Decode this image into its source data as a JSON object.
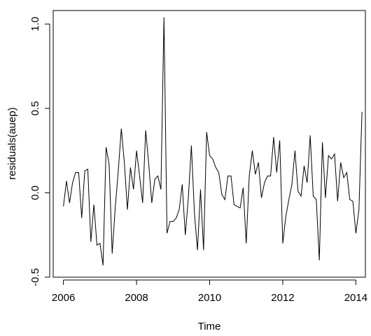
{
  "chart_data": {
    "type": "line",
    "title": "",
    "xlabel": "Time",
    "ylabel": "residuals(auep)",
    "xlim": [
      2005.72,
      2014.26
    ],
    "ylim": [
      -0.5,
      1.08
    ],
    "x_ticks": [
      2006,
      2008,
      2010,
      2012,
      2014
    ],
    "x_tick_labels": [
      "2006",
      "2008",
      "2010",
      "2012",
      "2014"
    ],
    "y_ticks": [
      -0.5,
      0.0,
      0.5,
      1.0
    ],
    "y_tick_labels": [
      "-0.5",
      "0.0",
      "0.5",
      "1.0"
    ],
    "line_color": "#000000",
    "grid": false,
    "series": [
      {
        "start": 2006.0,
        "frequency": 12,
        "values": [
          -0.08,
          0.07,
          -0.06,
          0.06,
          0.12,
          0.12,
          -0.15,
          0.13,
          0.14,
          -0.29,
          -0.07,
          -0.31,
          -0.3,
          -0.43,
          0.27,
          0.17,
          -0.36,
          -0.09,
          0.13,
          0.38,
          0.18,
          -0.1,
          0.15,
          0.02,
          0.25,
          0.1,
          -0.06,
          0.37,
          0.17,
          -0.06,
          0.08,
          0.1,
          0.02,
          1.04,
          -0.24,
          -0.17,
          -0.17,
          -0.15,
          -0.1,
          0.05,
          -0.25,
          -0.03,
          0.28,
          -0.12,
          -0.34,
          0.02,
          -0.34,
          0.36,
          0.22,
          0.2,
          0.15,
          0.12,
          -0.01,
          -0.04,
          0.1,
          0.1,
          -0.07,
          -0.08,
          -0.09,
          0.03,
          -0.3,
          0.1,
          0.25,
          0.11,
          0.18,
          -0.03,
          0.06,
          0.1,
          0.1,
          0.33,
          0.12,
          0.31,
          -0.3,
          -0.14,
          -0.04,
          0.05,
          0.25,
          0.01,
          -0.02,
          0.16,
          0.06,
          0.34,
          -0.02,
          -0.04,
          -0.4,
          0.3,
          -0.03,
          0.22,
          0.2,
          0.23,
          -0.05,
          0.18,
          0.09,
          0.12,
          -0.04,
          -0.05,
          -0.24,
          -0.1,
          0.48
        ]
      }
    ]
  }
}
